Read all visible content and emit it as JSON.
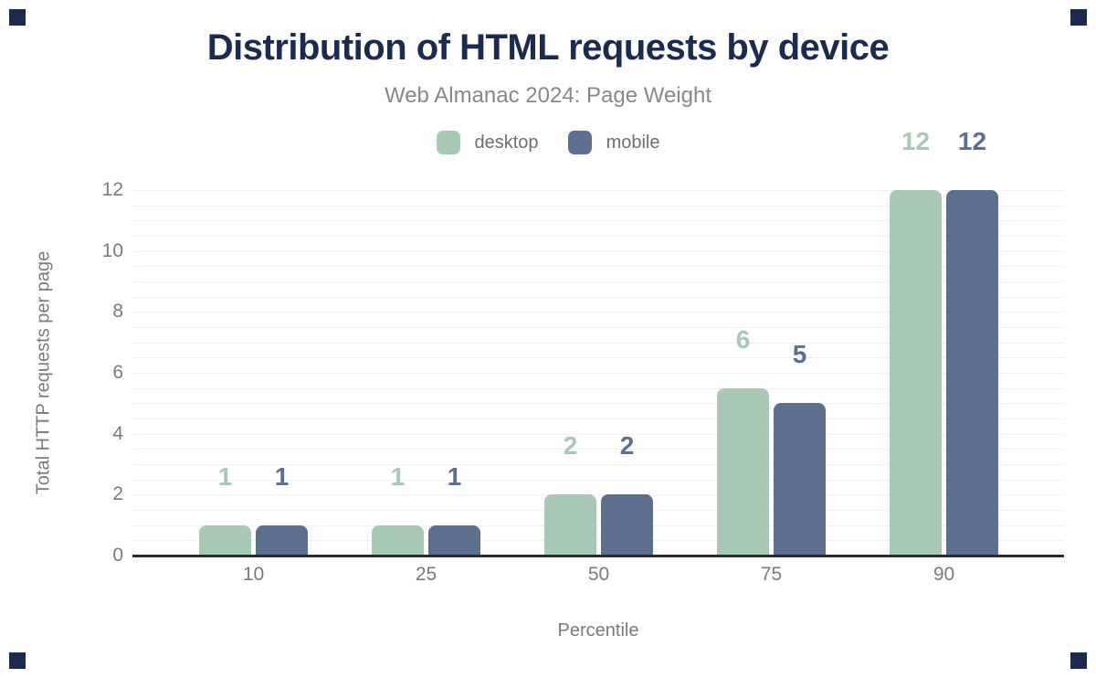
{
  "styles": {
    "page_bg": "#ffffff",
    "corner_mark_color": "#1b2b4e",
    "title_color": "#1b2b4e",
    "subtitle_color": "#85888c",
    "legend_text_color": "#6e6e6e",
    "axis_text_color": "#7a7a7a",
    "axis_line_color": "#2a2a2a",
    "gridline_color": "#f2f2f2"
  },
  "chart_data": {
    "type": "bar",
    "title": "Distribution of HTML requests by device",
    "subtitle": "Web Almanac 2024: Page Weight",
    "xlabel": "Percentile",
    "ylabel": "Total HTTP requests per page",
    "categories": [
      "10",
      "25",
      "50",
      "75",
      "90"
    ],
    "yticks": [
      0,
      2,
      4,
      6,
      8,
      10,
      12
    ],
    "ylim": [
      0,
      12
    ],
    "grid": "faint horizontal minor gridlines every 0.5 units",
    "legend_position": "top center",
    "series": [
      {
        "name": "desktop",
        "color": "#a8c8b6",
        "values": [
          1,
          1,
          2,
          5.5,
          12
        ],
        "labels": [
          "1",
          "1",
          "2",
          "6",
          "12"
        ]
      },
      {
        "name": "mobile",
        "color": "#5d6f8e",
        "values": [
          1,
          1,
          2,
          5,
          12
        ],
        "labels": [
          "1",
          "1",
          "2",
          "5",
          "12"
        ]
      }
    ]
  }
}
